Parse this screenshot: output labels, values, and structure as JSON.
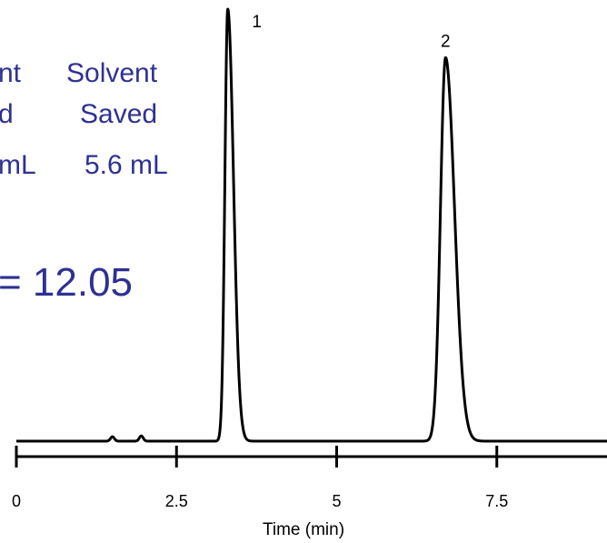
{
  "chart_data": {
    "type": "line",
    "title": "",
    "xlabel": "Time (min)",
    "ylabel": "",
    "xlim": [
      0,
      9.8
    ],
    "ylim": [
      0,
      1
    ],
    "grid": false,
    "xticks": [
      0,
      2.5,
      5,
      7.5
    ],
    "xtick_labels": [
      "0",
      "2.5",
      "5",
      "7.5"
    ],
    "baseline": 0.02,
    "minor_peaks": [
      {
        "x": 1.5,
        "height": 0.01,
        "width": 0.03
      },
      {
        "x": 1.95,
        "height": 0.012,
        "width": 0.03
      }
    ],
    "peaks": [
      {
        "label": "1",
        "x": 3.3,
        "height": 1.0,
        "width": 0.045,
        "tail": 0.09
      },
      {
        "label": "2",
        "x": 6.7,
        "height": 0.89,
        "width": 0.08,
        "tail": 0.14
      }
    ],
    "annotations": {
      "col1_line1": "nt",
      "col1_line2": "d",
      "col1_line3": "mL",
      "col2_line1": "Solvent",
      "col2_line2": "Saved",
      "col2_line3": "5.6 mL",
      "resolution_text": "= 12.05"
    }
  },
  "colors": {
    "trace": "#000000",
    "annotation": "#2e3192"
  }
}
